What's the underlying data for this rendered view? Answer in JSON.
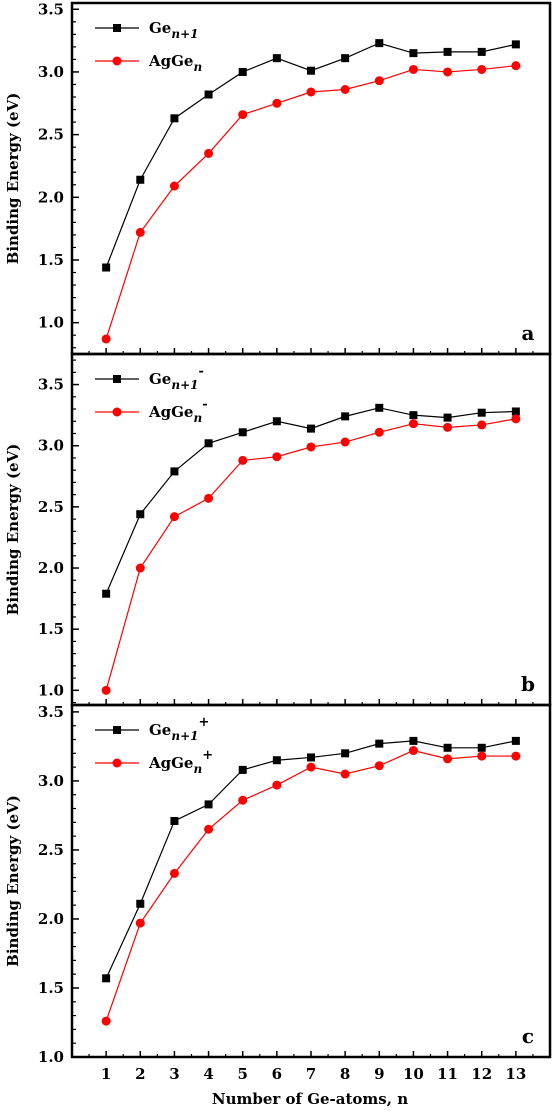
{
  "colors": {
    "ge": "#000000",
    "agge": "#ff0000",
    "axis": "#000000"
  },
  "chart_data": [
    {
      "type": "line",
      "panel_label": "a",
      "x": [
        1,
        2,
        3,
        4,
        5,
        6,
        7,
        8,
        9,
        10,
        11,
        12,
        13
      ],
      "ylabel": "Binding Energy (eV)",
      "xlabel": "",
      "ylim": [
        0.75,
        3.55
      ],
      "yticks": [
        1.0,
        1.5,
        2.0,
        2.5,
        3.0,
        3.5
      ],
      "ytick_labels": [
        "1.0",
        "1.5",
        "2.0",
        "2.5",
        "3.0",
        "3.5"
      ],
      "legend_position": "top-left",
      "grid": false,
      "series": [
        {
          "legend": {
            "base": "Ge",
            "sub": "n+1",
            "sup": ""
          },
          "marker": "square",
          "color": "#000000",
          "values": [
            1.44,
            2.14,
            2.63,
            2.82,
            3.0,
            3.11,
            3.01,
            3.11,
            3.23,
            3.15,
            3.16,
            3.16,
            3.22
          ]
        },
        {
          "legend": {
            "base": "AgGe",
            "sub": "n",
            "sup": ""
          },
          "marker": "circle",
          "color": "#ff0000",
          "values": [
            0.87,
            1.72,
            2.09,
            2.35,
            2.66,
            2.75,
            2.84,
            2.86,
            2.93,
            3.02,
            3.0,
            3.02,
            3.05
          ]
        }
      ]
    },
    {
      "type": "line",
      "panel_label": "b",
      "x": [
        1,
        2,
        3,
        4,
        5,
        6,
        7,
        8,
        9,
        10,
        11,
        12,
        13
      ],
      "ylabel": "Binding Energy (eV)",
      "xlabel": "",
      "ylim": [
        0.88,
        3.75
      ],
      "yticks": [
        1.0,
        1.5,
        2.0,
        2.5,
        3.0,
        3.5
      ],
      "ytick_labels": [
        "1.0",
        "1.5",
        "2.0",
        "2.5",
        "3.0",
        "3.5"
      ],
      "legend_position": "top-left",
      "grid": false,
      "series": [
        {
          "legend": {
            "base": "Ge",
            "sub": "n+1",
            "sup": "-"
          },
          "marker": "square",
          "color": "#000000",
          "values": [
            1.79,
            2.44,
            2.79,
            3.02,
            3.11,
            3.2,
            3.14,
            3.24,
            3.31,
            3.25,
            3.23,
            3.27,
            3.28
          ]
        },
        {
          "legend": {
            "base": "AgGe",
            "sub": "n",
            "sup": "-"
          },
          "marker": "circle",
          "color": "#ff0000",
          "values": [
            1.0,
            2.0,
            2.42,
            2.57,
            2.88,
            2.91,
            2.99,
            3.03,
            3.11,
            3.18,
            3.15,
            3.17,
            3.22
          ]
        }
      ]
    },
    {
      "type": "line",
      "panel_label": "c",
      "x": [
        1,
        2,
        3,
        4,
        5,
        6,
        7,
        8,
        9,
        10,
        11,
        12,
        13
      ],
      "ylabel": "Binding Energy (eV)",
      "xlabel": "Number of Ge-atoms, n",
      "xlim": [
        0,
        14
      ],
      "ylim": [
        1.0,
        3.55
      ],
      "yticks": [
        1.0,
        1.5,
        2.0,
        2.5,
        3.0,
        3.5
      ],
      "ytick_labels": [
        "1.0",
        "1.5",
        "2.0",
        "2.5",
        "3.0",
        "3.5"
      ],
      "xtick_labels": [
        "1",
        "2",
        "3",
        "4",
        "5",
        "6",
        "7",
        "8",
        "9",
        "10",
        "11",
        "12",
        "13"
      ],
      "legend_position": "top-left",
      "grid": false,
      "series": [
        {
          "legend": {
            "base": "Ge",
            "sub": "n+1",
            "sup": "+"
          },
          "marker": "square",
          "color": "#000000",
          "values": [
            1.57,
            2.11,
            2.71,
            2.83,
            3.08,
            3.15,
            3.17,
            3.2,
            3.27,
            3.29,
            3.24,
            3.24,
            3.29
          ]
        },
        {
          "legend": {
            "base": "AgGe",
            "sub": "n",
            "sup": "+"
          },
          "marker": "circle",
          "color": "#ff0000",
          "values": [
            1.26,
            1.97,
            2.33,
            2.65,
            2.86,
            2.97,
            3.1,
            3.05,
            3.11,
            3.22,
            3.16,
            3.18,
            3.18
          ]
        }
      ]
    }
  ]
}
